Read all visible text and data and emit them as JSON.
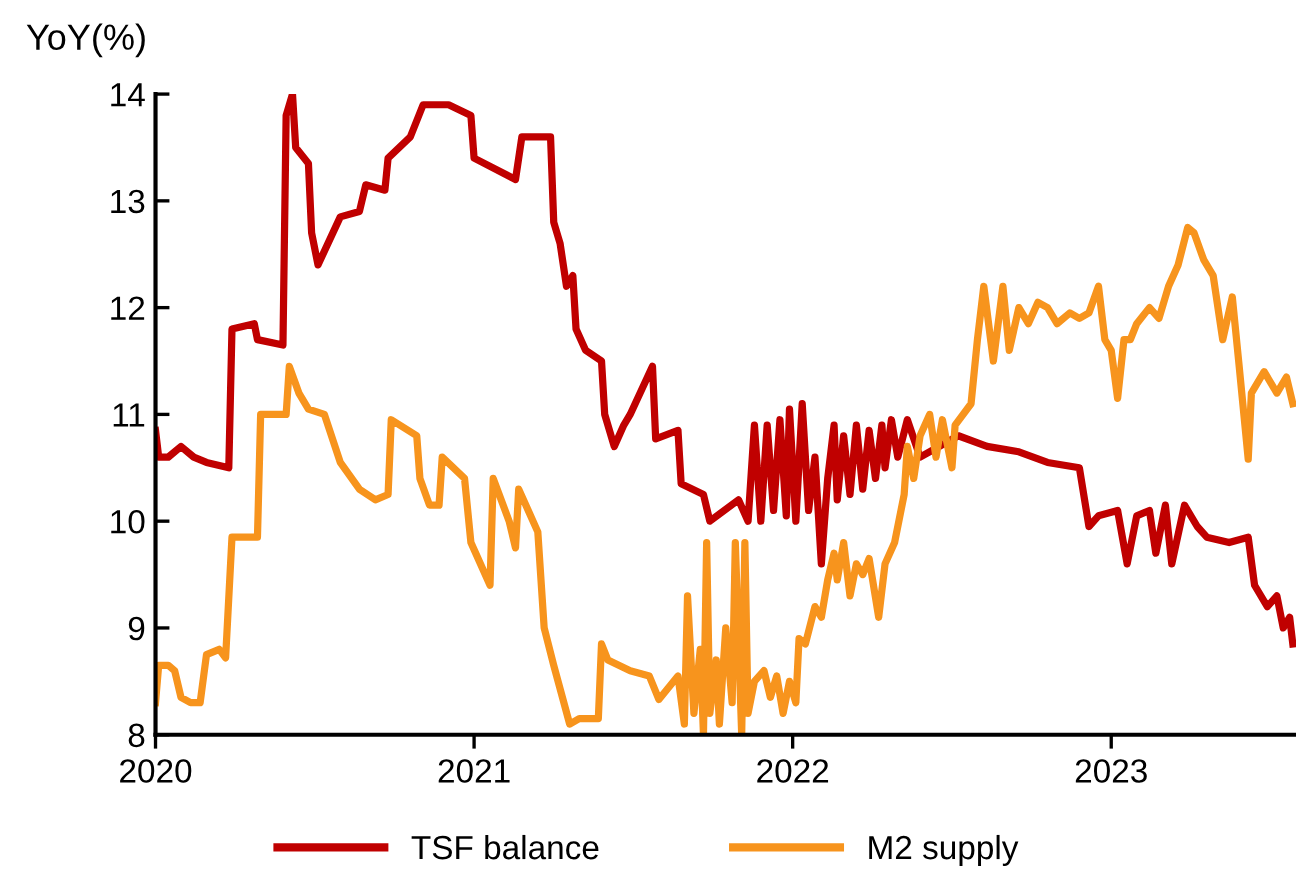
{
  "chart_data": {
    "type": "line",
    "ylabel": "YoY(%)",
    "xlim": [
      2020,
      2023.58
    ],
    "xticks": [
      2020,
      2021,
      2022,
      2023
    ],
    "ylim": [
      8,
      14
    ],
    "yticks": [
      8,
      9,
      10,
      11,
      12,
      13,
      14
    ],
    "grid": false,
    "legend": "bottom",
    "marker": "none",
    "line_style": "solid",
    "series": [
      {
        "name": "TSF balance",
        "color": "#c00000",
        "x": [
          2020.0,
          2020.01,
          2020.04,
          2020.08,
          2020.12,
          2020.16,
          2020.23,
          2020.24,
          2020.31,
          2020.32,
          2020.4,
          2020.41,
          2020.43,
          2020.44,
          2020.48,
          2020.49,
          2020.51,
          2020.58,
          2020.64,
          2020.66,
          2020.72,
          2020.73,
          2020.8,
          2020.84,
          2020.92,
          2020.99,
          2021.0,
          2021.13,
          2021.15,
          2021.24,
          2021.25,
          2021.27,
          2021.29,
          2021.31,
          2021.32,
          2021.35,
          2021.4,
          2021.41,
          2021.44,
          2021.47,
          2021.49,
          2021.56,
          2021.57,
          2021.64,
          2021.65,
          2021.72,
          2021.74,
          2021.83,
          2021.86,
          2021.88,
          2021.9,
          2021.92,
          2021.94,
          2021.96,
          2021.98,
          2021.99,
          2022.01,
          2022.03,
          2022.05,
          2022.07,
          2022.09,
          2022.11,
          2022.13,
          2022.14,
          2022.16,
          2022.18,
          2022.2,
          2022.22,
          2022.24,
          2022.26,
          2022.28,
          2022.29,
          2022.31,
          2022.33,
          2022.36,
          2022.4,
          2022.52,
          2022.61,
          2022.71,
          2022.8,
          2022.9,
          2022.93,
          2022.96,
          2023.02,
          2023.05,
          2023.08,
          2023.12,
          2023.14,
          2023.17,
          2023.19,
          2023.23,
          2023.27,
          2023.3,
          2023.37,
          2023.43,
          2023.45,
          2023.49,
          2023.52,
          2023.54,
          2023.56,
          2023.57
        ],
        "values": [
          10.85,
          10.6,
          10.6,
          10.7,
          10.6,
          10.55,
          10.5,
          11.8,
          11.85,
          11.7,
          11.65,
          13.8,
          14.0,
          13.5,
          13.35,
          12.7,
          12.4,
          12.85,
          12.9,
          13.15,
          13.1,
          13.4,
          13.6,
          13.9,
          13.9,
          13.8,
          13.4,
          13.2,
          13.6,
          13.6,
          12.8,
          12.6,
          12.2,
          12.3,
          11.8,
          11.6,
          11.5,
          11.0,
          10.7,
          10.9,
          11.0,
          11.45,
          10.77,
          10.85,
          10.35,
          10.25,
          10.0,
          10.2,
          10.0,
          10.9,
          10.0,
          10.9,
          10.1,
          10.95,
          10.05,
          11.05,
          10.0,
          11.1,
          10.1,
          10.6,
          9.6,
          10.4,
          10.9,
          10.2,
          10.8,
          10.25,
          10.9,
          10.3,
          10.85,
          10.4,
          10.9,
          10.5,
          10.95,
          10.6,
          10.95,
          10.6,
          10.8,
          10.7,
          10.65,
          10.55,
          10.5,
          9.95,
          10.05,
          10.1,
          9.6,
          10.05,
          10.1,
          9.7,
          10.15,
          9.6,
          10.15,
          9.95,
          9.85,
          9.8,
          9.85,
          9.4,
          9.2,
          9.3,
          9.0,
          9.1,
          8.85
        ]
      },
      {
        "name": "M2 supply",
        "color": "#f7941d",
        "x": [
          2020.0,
          2020.01,
          2020.04,
          2020.06,
          2020.08,
          2020.11,
          2020.14,
          2020.16,
          2020.2,
          2020.22,
          2020.24,
          2020.32,
          2020.33,
          2020.41,
          2020.42,
          2020.45,
          2020.48,
          2020.53,
          2020.58,
          2020.64,
          2020.69,
          2020.73,
          2020.74,
          2020.82,
          2020.83,
          2020.86,
          2020.89,
          2020.9,
          2020.97,
          2020.99,
          2021.05,
          2021.06,
          2021.11,
          2021.13,
          2021.14,
          2021.17,
          2021.2,
          2021.22,
          2021.25,
          2021.3,
          2021.33,
          2021.39,
          2021.4,
          2021.42,
          2021.49,
          2021.55,
          2021.58,
          2021.64,
          2021.66,
          2021.67,
          2021.69,
          2021.71,
          2021.72,
          2021.73,
          2021.74,
          2021.76,
          2021.77,
          2021.79,
          2021.81,
          2021.82,
          2021.84,
          2021.85,
          2021.86,
          2021.88,
          2021.91,
          2021.93,
          2021.95,
          2021.97,
          2021.99,
          2022.01,
          2022.02,
          2022.04,
          2022.07,
          2022.09,
          2022.11,
          2022.13,
          2022.14,
          2022.16,
          2022.18,
          2022.2,
          2022.22,
          2022.24,
          2022.27,
          2022.29,
          2022.32,
          2022.35,
          2022.36,
          2022.38,
          2022.4,
          2022.43,
          2022.45,
          2022.47,
          2022.5,
          2022.51,
          2022.56,
          2022.58,
          2022.6,
          2022.63,
          2022.66,
          2022.68,
          2022.71,
          2022.74,
          2022.77,
          2022.8,
          2022.83,
          2022.87,
          2022.9,
          2022.93,
          2022.96,
          2022.98,
          2023.0,
          2023.02,
          2023.04,
          2023.06,
          2023.08,
          2023.12,
          2023.15,
          2023.18,
          2023.21,
          2023.24,
          2023.26,
          2023.29,
          2023.32,
          2023.35,
          2023.38,
          2023.4,
          2023.43,
          2023.44,
          2023.48,
          2023.52,
          2023.55,
          2023.57
        ],
        "values": [
          8.3,
          8.65,
          8.65,
          8.6,
          8.35,
          8.3,
          8.3,
          8.75,
          8.8,
          8.72,
          9.85,
          9.85,
          11.0,
          11.0,
          11.45,
          11.2,
          11.05,
          11.0,
          10.55,
          10.3,
          10.2,
          10.25,
          10.95,
          10.8,
          10.4,
          10.15,
          10.15,
          10.6,
          10.4,
          9.8,
          9.4,
          10.4,
          10.0,
          9.75,
          10.3,
          10.1,
          9.9,
          9.0,
          8.65,
          8.1,
          8.15,
          8.15,
          8.85,
          8.7,
          8.6,
          8.55,
          8.33,
          8.55,
          8.1,
          9.3,
          8.2,
          8.8,
          8.0,
          9.8,
          8.2,
          8.7,
          8.1,
          9.0,
          8.3,
          9.8,
          8.0,
          9.8,
          8.2,
          8.5,
          8.6,
          8.35,
          8.55,
          8.2,
          8.5,
          8.3,
          8.9,
          8.85,
          9.2,
          9.1,
          9.45,
          9.7,
          9.45,
          9.8,
          9.3,
          9.6,
          9.5,
          9.65,
          9.1,
          9.6,
          9.8,
          10.25,
          10.7,
          10.4,
          10.8,
          11.0,
          10.6,
          10.95,
          10.5,
          10.9,
          11.1,
          11.7,
          12.2,
          11.5,
          12.2,
          11.6,
          12.0,
          11.85,
          12.05,
          12.0,
          11.85,
          11.95,
          11.9,
          11.95,
          12.2,
          11.7,
          11.6,
          11.15,
          11.7,
          11.7,
          11.85,
          12.0,
          11.9,
          12.2,
          12.4,
          12.75,
          12.7,
          12.45,
          12.3,
          11.7,
          12.1,
          11.5,
          10.58,
          11.2,
          11.4,
          11.2,
          11.35,
          11.1
        ]
      }
    ]
  }
}
